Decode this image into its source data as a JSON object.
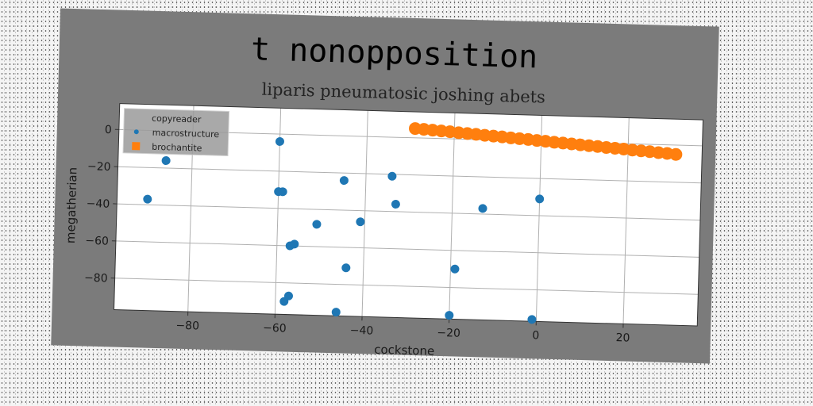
{
  "chart_data": {
    "type": "scatter",
    "title": "t nonopposition",
    "subtitle": "liparis pneumatosic joshing abets",
    "xlabel": "cockstone",
    "ylabel": "megatherian",
    "xlim": [
      -97,
      37
    ],
    "ylim": [
      -97,
      14
    ],
    "xticks": [
      -80,
      -60,
      -40,
      -20,
      0,
      20
    ],
    "yticks": [
      0,
      -20,
      -40,
      -60,
      -80
    ],
    "grid": true,
    "legend": {
      "title": "copyreader",
      "placement": "top-left",
      "entries": [
        "macrostructure",
        "brochantite"
      ]
    },
    "series": [
      {
        "name": "macrostructure",
        "color": "#1f77b4",
        "points": [
          {
            "x": -86,
            "y": -16
          },
          {
            "x": -90,
            "y": -37
          },
          {
            "x": -60,
            "y": -4
          },
          {
            "x": -60,
            "y": -31
          },
          {
            "x": -59,
            "y": -31
          },
          {
            "x": -57,
            "y": -60
          },
          {
            "x": -56,
            "y": -59
          },
          {
            "x": -51,
            "y": -48
          },
          {
            "x": -45,
            "y": -24
          },
          {
            "x": -44,
            "y": -71
          },
          {
            "x": -41,
            "y": -46
          },
          {
            "x": -34,
            "y": -21
          },
          {
            "x": -33,
            "y": -36
          },
          {
            "x": -19,
            "y": -70
          },
          {
            "x": -13,
            "y": -37
          },
          {
            "x": 0,
            "y": -31
          },
          {
            "x": -58,
            "y": -90
          },
          {
            "x": -57,
            "y": -87
          },
          {
            "x": -46,
            "y": -95
          },
          {
            "x": -20,
            "y": -95
          },
          {
            "x": -1,
            "y": -96
          }
        ]
      },
      {
        "name": "brochantite",
        "color": "#ff7f0e",
        "points": [
          {
            "x": -29,
            "y": 5.0
          },
          {
            "x": -27,
            "y": 4.7
          },
          {
            "x": -25,
            "y": 4.4
          },
          {
            "x": -23,
            "y": 4.1
          },
          {
            "x": -21,
            "y": 3.8
          },
          {
            "x": -19,
            "y": 3.4
          },
          {
            "x": -17,
            "y": 3.1
          },
          {
            "x": -15,
            "y": 2.8
          },
          {
            "x": -13,
            "y": 2.4
          },
          {
            "x": -11,
            "y": 2.1
          },
          {
            "x": -9,
            "y": 1.8
          },
          {
            "x": -7,
            "y": 1.4
          },
          {
            "x": -5,
            "y": 1.1
          },
          {
            "x": -3,
            "y": 0.8
          },
          {
            "x": -1,
            "y": 0.4
          },
          {
            "x": 1,
            "y": 0.1
          },
          {
            "x": 3,
            "y": -0.3
          },
          {
            "x": 5,
            "y": -0.6
          },
          {
            "x": 7,
            "y": -0.9
          },
          {
            "x": 9,
            "y": -1.3
          },
          {
            "x": 11,
            "y": -1.6
          },
          {
            "x": 13,
            "y": -1.9
          },
          {
            "x": 15,
            "y": -2.3
          },
          {
            "x": 17,
            "y": -2.6
          },
          {
            "x": 19,
            "y": -2.9
          },
          {
            "x": 21,
            "y": -3.3
          },
          {
            "x": 23,
            "y": -3.6
          },
          {
            "x": 25,
            "y": -3.9
          },
          {
            "x": 27,
            "y": -4.3
          },
          {
            "x": 29,
            "y": -4.6
          },
          {
            "x": 31,
            "y": -5.0
          }
        ]
      }
    ]
  }
}
